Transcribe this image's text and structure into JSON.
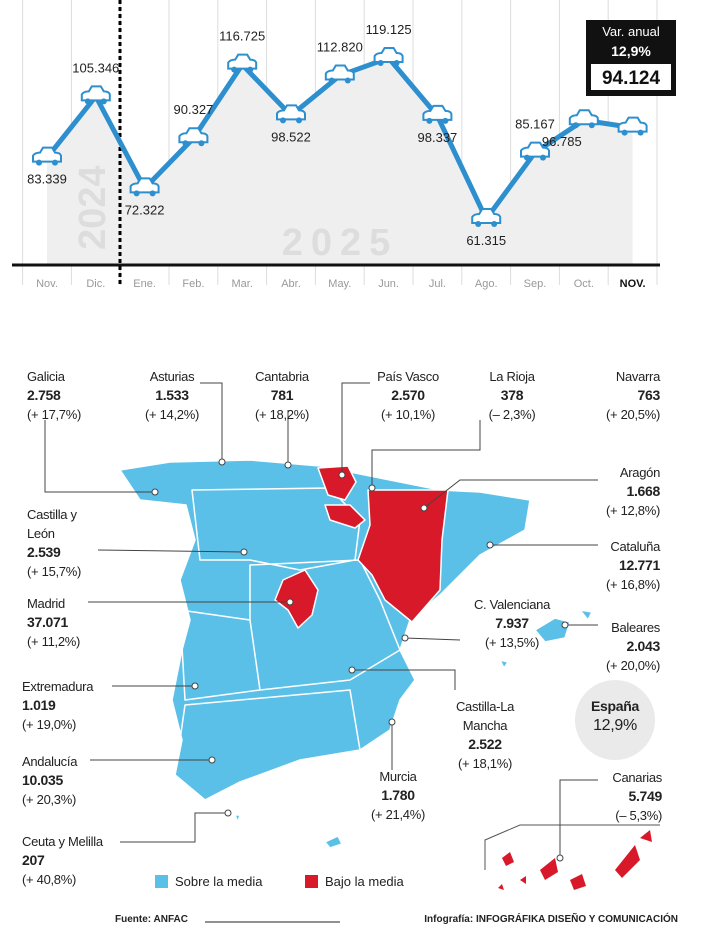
{
  "chart_data": {
    "type": "line",
    "categories": [
      "Nov.",
      "Dic.",
      "Ene.",
      "Feb.",
      "Mar.",
      "Abr.",
      "May.",
      "Jun.",
      "Jul.",
      "Ago.",
      "Sep.",
      "Oct.",
      "NOV."
    ],
    "values": [
      83339,
      105346,
      72322,
      90327,
      116725,
      98522,
      112820,
      119125,
      98337,
      61315,
      85167,
      96785,
      94124
    ],
    "value_labels": [
      "83.339",
      "105.346",
      "72.322",
      "90.327",
      "116.725",
      "98.522",
      "112.820",
      "119.125",
      "98.337",
      "61.315",
      "85.167",
      "96.785",
      "94.124"
    ],
    "color": "#2e8fcf",
    "year_labels": [
      "2024",
      "2025"
    ],
    "annual_change_label": "Var. anual",
    "annual_change": "12,9%"
  },
  "map": {
    "regions": [
      {
        "name": "Galicia",
        "value": "2.758",
        "change": "(+ 17,7%)"
      },
      {
        "name": "Asturias",
        "value": "1.533",
        "change": "(+ 14,2%)"
      },
      {
        "name": "Cantabria",
        "value": "781",
        "change": "(+ 18,2%)"
      },
      {
        "name": "País Vasco",
        "value": "2.570",
        "change": "(+ 10,1%)"
      },
      {
        "name": "La Rioja",
        "value": "378",
        "change": "(– 2,3%)"
      },
      {
        "name": "Navarra",
        "value": "763",
        "change": "(+ 20,5%)"
      },
      {
        "name": "Aragón",
        "value": "1.668",
        "change": "(+ 12,8%)"
      },
      {
        "name": "Castilla y León",
        "value": "2.539",
        "change": "(+ 15,7%)"
      },
      {
        "name": "Cataluña",
        "value": "12.771",
        "change": "(+ 16,8%)"
      },
      {
        "name": "Madrid",
        "value": "37.071",
        "change": "(+ 11,2%)"
      },
      {
        "name": "C. Valenciana",
        "value": "7.937",
        "change": "(+ 13,5%)"
      },
      {
        "name": "Baleares",
        "value": "2.043",
        "change": "(+ 20,0%)"
      },
      {
        "name": "Extremadura",
        "value": "1.019",
        "change": "(+ 19,0%)"
      },
      {
        "name": "Castilla-La Mancha",
        "value": "2.522",
        "change": "(+ 18,1%)"
      },
      {
        "name": "Andalucía",
        "value": "10.035",
        "change": "(+ 20,3%)"
      },
      {
        "name": "Murcia",
        "value": "1.780",
        "change": "(+ 21,4%)"
      },
      {
        "name": "Canarias",
        "value": "5.749",
        "change": "(– 5,3%)"
      },
      {
        "name": "Ceuta y Melilla",
        "value": "207",
        "change": "(+ 40,8%)"
      }
    ],
    "spain": {
      "name": "España",
      "change": "12,9%"
    },
    "legend": [
      {
        "label": "Sobre la media",
        "color": "#5bc0e8"
      },
      {
        "label": "Bajo la media",
        "color": "#d7192a"
      }
    ]
  },
  "footer": {
    "source": "Fuente: ANFAC",
    "credit": "Infografía: INFOGRÁFIKA DISEÑO Y COMUNICACIÓN"
  }
}
